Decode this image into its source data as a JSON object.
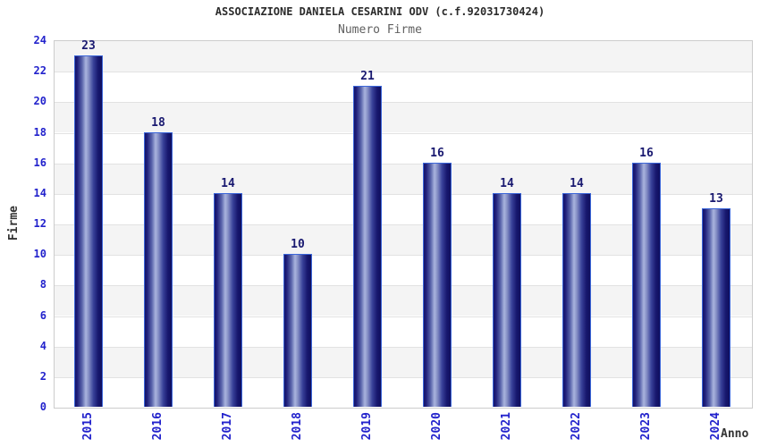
{
  "header": {
    "title": "ASSOCIAZIONE DANIELA CESARINI ODV (c.f.92031730424)",
    "subtitle": "Numero Firme"
  },
  "chart_data": {
    "type": "bar",
    "title": "ASSOCIAZIONE DANIELA CESARINI ODV (c.f.92031730424)",
    "subtitle": "Numero Firme",
    "categories": [
      "2015",
      "2016",
      "2017",
      "2018",
      "2019",
      "2020",
      "2021",
      "2022",
      "2023",
      "2024"
    ],
    "values": [
      23,
      18,
      14,
      10,
      21,
      16,
      14,
      14,
      16,
      13
    ],
    "xlabel": "Anno",
    "ylabel": "Firme",
    "ylim": [
      0,
      24
    ],
    "ytick_step": 2,
    "grid": true,
    "legend": "none",
    "band_fill": "alternating horizontal stripes every 2 units",
    "colors": {
      "tick_label": "#2222cc",
      "value_label": "#191970",
      "bar_dark": "#14146a",
      "bar_light": "#aab4de",
      "bar_border": "#3b66d9",
      "band_gray": "#f4f4f4",
      "band_white": "#ffffff",
      "gridline": "#e2e2e2",
      "plot_border": "#cccccc",
      "title_color": "#2b2b2b",
      "subtitle_color": "#606060",
      "axis_title_color": "#333333"
    }
  }
}
